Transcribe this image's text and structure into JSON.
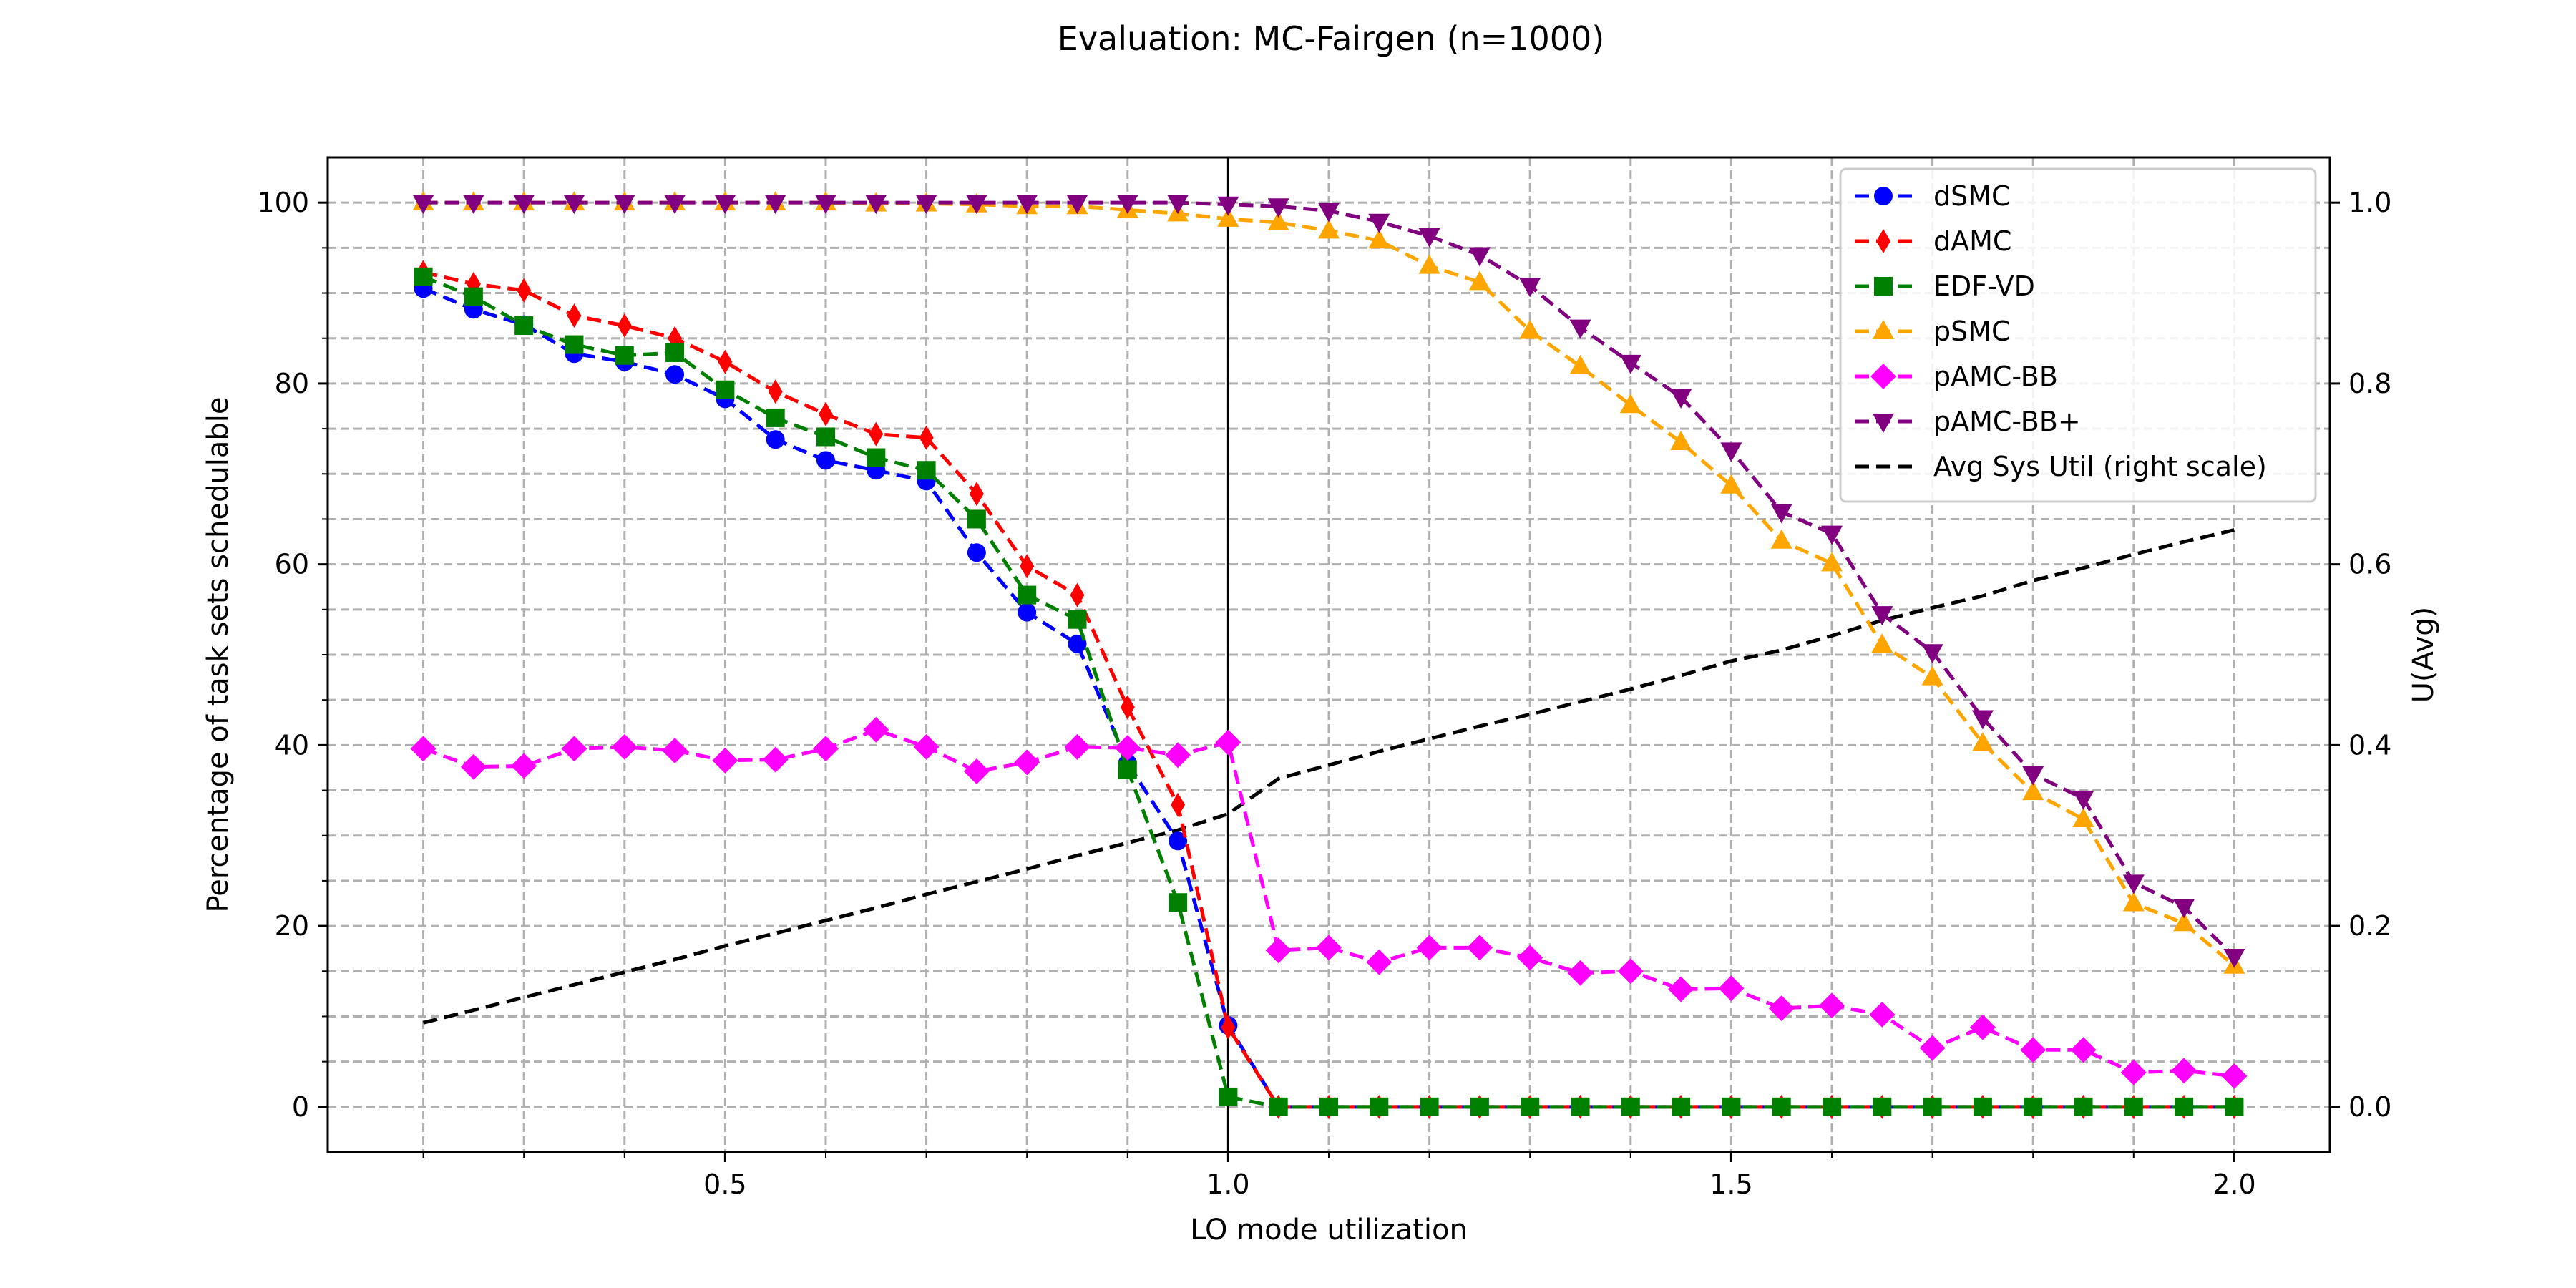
{
  "chart_data": {
    "type": "line",
    "title": "Evaluation: MC-Fairgen (n=1000)",
    "xlabel": "LO mode utilization",
    "ylabel": "Percentage of task sets schedulable",
    "y2label": "U(Avg)",
    "xlim": [
      0.105,
      2.095
    ],
    "ylim": [
      -5,
      105
    ],
    "y2lim": [
      -0.05,
      1.05
    ],
    "xticks": [
      0.5,
      1.0,
      1.5,
      2.0
    ],
    "xtick_labels": [
      "0.5",
      "1.0",
      "1.5",
      "2.0"
    ],
    "xminor": [
      0.2,
      0.3,
      0.4,
      0.6,
      0.7,
      0.8,
      0.9,
      1.1,
      1.2,
      1.3,
      1.4,
      1.6,
      1.7,
      1.8,
      1.9
    ],
    "yticks": [
      0,
      20,
      40,
      60,
      80,
      100
    ],
    "ytick_labels": [
      "0",
      "20",
      "40",
      "60",
      "80",
      "100"
    ],
    "yminor": [
      5,
      10,
      15,
      25,
      30,
      35,
      45,
      50,
      55,
      65,
      70,
      75,
      85,
      90,
      95
    ],
    "y2ticks": [
      0.0,
      0.2,
      0.4,
      0.6,
      0.8,
      1.0
    ],
    "y2tick_labels": [
      "0.0",
      "0.2",
      "0.4",
      "0.6",
      "0.8",
      "1.0"
    ],
    "grid": true,
    "vline": 1.0,
    "legend_position": "upper-right",
    "x": [
      0.2,
      0.25,
      0.3,
      0.35,
      0.4,
      0.45,
      0.5,
      0.55,
      0.6,
      0.65,
      0.7,
      0.75,
      0.8,
      0.85,
      0.9,
      0.95,
      1.0,
      1.05,
      1.1,
      1.15,
      1.2,
      1.25,
      1.3,
      1.35,
      1.4,
      1.45,
      1.5,
      1.55,
      1.6,
      1.65,
      1.7,
      1.75,
      1.8,
      1.85,
      1.9,
      1.95,
      2.0
    ],
    "series": [
      {
        "name": "dSMC",
        "color": "#0000ff",
        "marker": "circle",
        "values": [
          90.5,
          88.2,
          86.5,
          83.3,
          82.4,
          81.0,
          78.3,
          73.8,
          71.5,
          70.4,
          69.2,
          61.3,
          54.7,
          51.2,
          38.0,
          29.4,
          9.0,
          0,
          0,
          0,
          0,
          0,
          0,
          0,
          0,
          0,
          0,
          0,
          0,
          0,
          0,
          0,
          0,
          0,
          0,
          0,
          0
        ]
      },
      {
        "name": "dAMC",
        "color": "#ff0000",
        "marker": "diamond_thin",
        "values": [
          92.3,
          91.0,
          90.3,
          87.5,
          86.4,
          85.0,
          82.4,
          79.1,
          76.6,
          74.4,
          74.0,
          67.8,
          59.8,
          56.6,
          44.2,
          33.4,
          8.8,
          0,
          0,
          0,
          0,
          0,
          0,
          0,
          0,
          0,
          0,
          0,
          0,
          0,
          0,
          0,
          0,
          0,
          0,
          0,
          0
        ]
      },
      {
        "name": "EDF-VD",
        "color": "#008000",
        "marker": "square",
        "values": [
          91.8,
          89.6,
          86.4,
          84.3,
          83.1,
          83.4,
          79.3,
          76.2,
          74.1,
          71.8,
          70.4,
          65.0,
          56.6,
          53.9,
          37.3,
          22.6,
          1.1,
          0,
          0,
          0,
          0,
          0,
          0,
          0,
          0,
          0,
          0,
          0,
          0,
          0,
          0,
          0,
          0,
          0,
          0,
          0,
          0
        ]
      },
      {
        "name": "pSMC",
        "color": "#ffa500",
        "marker": "triangle_up",
        "values": [
          100,
          100,
          100,
          100,
          100,
          100,
          100,
          100,
          100,
          99.9,
          99.9,
          99.8,
          99.6,
          99.6,
          99.2,
          98.8,
          98.2,
          97.8,
          96.9,
          95.8,
          93.0,
          91.2,
          85.8,
          81.9,
          77.6,
          73.5,
          68.7,
          62.6,
          60.1,
          51.1,
          47.5,
          40.2,
          34.8,
          31.8,
          22.5,
          20.3,
          15.6
        ]
      },
      {
        "name": "pAMC-BB",
        "color": "#ff00ff",
        "marker": "diamond",
        "values": [
          39.6,
          37.6,
          37.7,
          39.6,
          39.8,
          39.4,
          38.3,
          38.4,
          39.6,
          41.7,
          39.8,
          37.1,
          38.1,
          39.8,
          39.7,
          38.9,
          40.3,
          17.3,
          17.6,
          16.0,
          17.6,
          17.6,
          16.5,
          14.8,
          15.0,
          13.0,
          13.1,
          10.9,
          11.2,
          10.2,
          6.5,
          8.8,
          6.3,
          6.3,
          3.8,
          4.0,
          3.4
        ]
      },
      {
        "name": "pAMC-BB+",
        "color": "#800080",
        "marker": "triangle_down",
        "values": [
          100,
          100,
          100,
          100,
          100,
          100,
          100,
          100,
          100,
          100,
          100,
          100,
          100,
          100,
          100,
          100,
          99.8,
          99.6,
          99.1,
          97.9,
          96.3,
          94.2,
          90.8,
          86.2,
          82.3,
          78.5,
          72.6,
          65.8,
          63.4,
          54.5,
          50.3,
          43.0,
          36.8,
          34.1,
          24.8,
          22.1,
          16.6
        ]
      }
    ],
    "right_axis_series": {
      "name": "Avg Sys Util (right scale)",
      "color": "#000000",
      "values": [
        0.093,
        0.107,
        0.121,
        0.135,
        0.149,
        0.163,
        0.178,
        0.192,
        0.206,
        0.22,
        0.235,
        0.249,
        0.263,
        0.278,
        0.292,
        0.306,
        0.324,
        0.363,
        0.378,
        0.393,
        0.407,
        0.421,
        0.434,
        0.448,
        0.462,
        0.477,
        0.493,
        0.505,
        0.521,
        0.538,
        0.552,
        0.565,
        0.582,
        0.596,
        0.611,
        0.625,
        0.638
      ]
    }
  }
}
